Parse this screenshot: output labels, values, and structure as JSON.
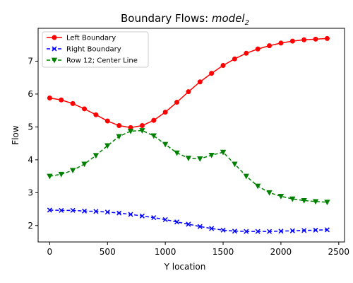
{
  "chart_data": {
    "type": "line",
    "title_prefix": "Boundary Flows: ",
    "title_math": "model",
    "title_sub": "2",
    "xlabel": "Y location",
    "ylabel": "Flow",
    "xlim": [
      -100,
      2550
    ],
    "ylim": [
      1.5,
      8.0
    ],
    "xticks": [
      0,
      500,
      1000,
      1500,
      2000,
      2500
    ],
    "yticks": [
      2,
      3,
      4,
      5,
      6,
      7
    ],
    "grid": false,
    "legend_position": "upper-left",
    "x": [
      0,
      100,
      200,
      300,
      400,
      500,
      600,
      700,
      800,
      900,
      1000,
      1100,
      1200,
      1300,
      1400,
      1500,
      1600,
      1700,
      1800,
      1900,
      2000,
      2100,
      2200,
      2300,
      2400
    ],
    "series": [
      {
        "name": "Left Boundary",
        "color": "#ff0000",
        "marker": "circle",
        "linestyle": "solid",
        "values": [
          5.88,
          5.82,
          5.71,
          5.55,
          5.37,
          5.18,
          5.04,
          4.98,
          5.04,
          5.2,
          5.45,
          5.75,
          6.07,
          6.37,
          6.63,
          6.87,
          7.07,
          7.24,
          7.37,
          7.47,
          7.55,
          7.61,
          7.65,
          7.67,
          7.69
        ]
      },
      {
        "name": "Right Boundary",
        "color": "#0000ff",
        "marker": "x",
        "linestyle": "dashed",
        "values": [
          2.47,
          2.46,
          2.46,
          2.44,
          2.43,
          2.41,
          2.38,
          2.34,
          2.29,
          2.24,
          2.18,
          2.11,
          2.04,
          1.97,
          1.91,
          1.86,
          1.83,
          1.82,
          1.82,
          1.82,
          1.83,
          1.84,
          1.85,
          1.86,
          1.87
        ]
      },
      {
        "name": "Row 12; Center Line",
        "color": "#008000",
        "marker": "triangle-down",
        "linestyle": "dashed",
        "values": [
          3.5,
          3.56,
          3.68,
          3.87,
          4.13,
          4.43,
          4.71,
          4.87,
          4.89,
          4.73,
          4.47,
          4.21,
          4.05,
          4.03,
          4.14,
          4.23,
          3.87,
          3.5,
          3.2,
          3.0,
          2.89,
          2.81,
          2.76,
          2.73,
          2.71
        ]
      }
    ]
  }
}
